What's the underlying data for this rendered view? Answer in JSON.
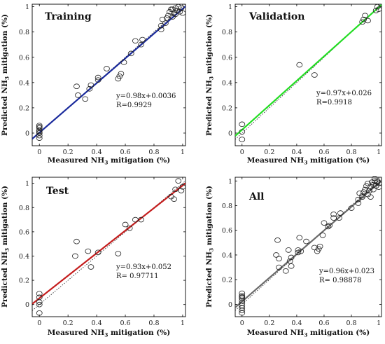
{
  "chart_data": [
    {
      "type": "scatter",
      "title": "Training",
      "xlabel": "Measured NH3 mitigation (%)",
      "ylabel": "Predicted NH3 mitigation (%)",
      "xlim": [
        -0.05,
        1.02
      ],
      "ylim": [
        -0.1,
        1.02
      ],
      "xticks": [
        "0",
        "0.2",
        "0.4",
        "0.6",
        "0.8",
        "1"
      ],
      "yticks": [
        "0",
        "0.2",
        "0.4",
        "0.6",
        "0.8",
        "1"
      ],
      "equation": "y=0.98x+0.0036",
      "r": "R=0.9929",
      "fit": {
        "slope": 0.98,
        "intercept": 0.0036
      },
      "line_color": "#1a2a9c",
      "points": [
        [
          0,
          0
        ],
        [
          0,
          0.02
        ],
        [
          0,
          -0.02
        ],
        [
          0,
          0.04
        ],
        [
          0,
          0.05
        ],
        [
          0,
          -0.04
        ],
        [
          0,
          0.06
        ],
        [
          0,
          0.01
        ],
        [
          0.26,
          0.37
        ],
        [
          0.27,
          0.3
        ],
        [
          0.32,
          0.27
        ],
        [
          0.35,
          0.35
        ],
        [
          0.36,
          0.38
        ],
        [
          0.41,
          0.42
        ],
        [
          0.41,
          0.44
        ],
        [
          0.47,
          0.51
        ],
        [
          0.55,
          0.43
        ],
        [
          0.56,
          0.45
        ],
        [
          0.57,
          0.47
        ],
        [
          0.59,
          0.56
        ],
        [
          0.64,
          0.63
        ],
        [
          0.67,
          0.73
        ],
        [
          0.71,
          0.7
        ],
        [
          0.72,
          0.74
        ],
        [
          0.85,
          0.82
        ],
        [
          0.85,
          0.85
        ],
        [
          0.86,
          0.9
        ],
        [
          0.88,
          0.87
        ],
        [
          0.89,
          0.91
        ],
        [
          0.9,
          0.93
        ],
        [
          0.91,
          0.96
        ],
        [
          0.92,
          0.98
        ],
        [
          0.93,
          0.92
        ],
        [
          0.94,
          0.95
        ],
        [
          0.95,
          0.99
        ],
        [
          0.96,
          0.97
        ],
        [
          0.97,
          1.0
        ],
        [
          0.98,
          0.96
        ],
        [
          0.99,
          0.99
        ],
        [
          1.0,
          0.95
        ],
        [
          0.93,
          0.98
        ],
        [
          0.95,
          0.94
        ]
      ]
    },
    {
      "type": "scatter",
      "title": "Validation",
      "xlabel": "Measured NH3 mitigation (%)",
      "ylabel": "Predicted NH3 mitigation (%)",
      "xlim": [
        -0.05,
        1.02
      ],
      "ylim": [
        -0.1,
        1.02
      ],
      "xticks": [
        "0",
        "0.2",
        "0.4",
        "0.6",
        "0.8",
        "1"
      ],
      "yticks": [
        "0",
        "0.2",
        "0.4",
        "0.6",
        "0.8",
        "1"
      ],
      "equation": "y=0.97x+0.026",
      "r": "R=0.9918",
      "fit": {
        "slope": 0.97,
        "intercept": 0.026
      },
      "line_color": "#22dd22",
      "points": [
        [
          0,
          0.07
        ],
        [
          0,
          0.01
        ],
        [
          0,
          -0.05
        ],
        [
          0.42,
          0.54
        ],
        [
          0.53,
          0.46
        ],
        [
          0.88,
          0.88
        ],
        [
          0.89,
          0.9
        ],
        [
          0.9,
          0.93
        ],
        [
          0.92,
          0.89
        ],
        [
          0.98,
          0.97
        ],
        [
          0.99,
          1.0
        ],
        [
          1.0,
          0.98
        ]
      ]
    },
    {
      "type": "scatter",
      "title": "Test",
      "xlabel": "Measured NH3 mitigation (%)",
      "ylabel": "Predicted NH3 mitigation (%)",
      "xlim": [
        -0.05,
        1.02
      ],
      "ylim": [
        -0.1,
        1.05
      ],
      "xticks": [
        "0",
        "0.2",
        "0.4",
        "0.6",
        "0.8",
        "1"
      ],
      "yticks": [
        "0",
        "0.2",
        "0.4",
        "0.6",
        "0.8",
        "1"
      ],
      "equation": "y=0.93x+0.052",
      "r": "R= 0.97711",
      "fit": {
        "slope": 0.93,
        "intercept": 0.052
      },
      "line_color": "#c41d1d",
      "points": [
        [
          0,
          0.09
        ],
        [
          0,
          0.06
        ],
        [
          0,
          0.02
        ],
        [
          0,
          0
        ],
        [
          0,
          -0.07
        ],
        [
          0.25,
          0.4
        ],
        [
          0.26,
          0.52
        ],
        [
          0.34,
          0.44
        ],
        [
          0.36,
          0.31
        ],
        [
          0.41,
          0.43
        ],
        [
          0.55,
          0.42
        ],
        [
          0.6,
          0.66
        ],
        [
          0.63,
          0.63
        ],
        [
          0.67,
          0.7
        ],
        [
          0.71,
          0.7
        ],
        [
          0.92,
          0.89
        ],
        [
          0.94,
          0.87
        ],
        [
          0.95,
          0.95
        ],
        [
          0.97,
          1.02
        ],
        [
          0.99,
          0.94
        ],
        [
          1.0,
          0.97
        ]
      ]
    },
    {
      "type": "scatter",
      "title": "All",
      "xlabel": "Measured NH3 mitigation (%)",
      "ylabel": "Predicted NH3 mitigation (%)",
      "xlim": [
        -0.05,
        1.02
      ],
      "ylim": [
        -0.1,
        1.03
      ],
      "xticks": [
        "0",
        "0.2",
        "0.4",
        "0.6",
        "0.8",
        "1"
      ],
      "yticks": [
        "0",
        "0.2",
        "0.4",
        "0.6",
        "0.8",
        "1"
      ],
      "equation": "y=0.96x+0.023",
      "r": "R= 0.98878",
      "fit": {
        "slope": 0.96,
        "intercept": 0.023
      },
      "line_color": "#6a6a6a",
      "points": [
        [
          0,
          0.09
        ],
        [
          0,
          0.07
        ],
        [
          0,
          0.05
        ],
        [
          0,
          0.03
        ],
        [
          0,
          0.01
        ],
        [
          0,
          -0.01
        ],
        [
          0,
          -0.03
        ],
        [
          0,
          -0.05
        ],
        [
          0,
          -0.07
        ],
        [
          0,
          0.06
        ],
        [
          0.25,
          0.4
        ],
        [
          0.26,
          0.52
        ],
        [
          0.27,
          0.37
        ],
        [
          0.27,
          0.3
        ],
        [
          0.32,
          0.27
        ],
        [
          0.34,
          0.44
        ],
        [
          0.35,
          0.35
        ],
        [
          0.36,
          0.31
        ],
        [
          0.36,
          0.38
        ],
        [
          0.41,
          0.42
        ],
        [
          0.41,
          0.44
        ],
        [
          0.42,
          0.54
        ],
        [
          0.43,
          0.43
        ],
        [
          0.47,
          0.51
        ],
        [
          0.53,
          0.46
        ],
        [
          0.55,
          0.43
        ],
        [
          0.56,
          0.45
        ],
        [
          0.57,
          0.47
        ],
        [
          0.59,
          0.56
        ],
        [
          0.6,
          0.66
        ],
        [
          0.63,
          0.63
        ],
        [
          0.64,
          0.64
        ],
        [
          0.67,
          0.73
        ],
        [
          0.67,
          0.7
        ],
        [
          0.71,
          0.7
        ],
        [
          0.72,
          0.74
        ],
        [
          0.8,
          0.78
        ],
        [
          0.85,
          0.82
        ],
        [
          0.85,
          0.85
        ],
        [
          0.86,
          0.9
        ],
        [
          0.88,
          0.87
        ],
        [
          0.88,
          0.88
        ],
        [
          0.89,
          0.91
        ],
        [
          0.9,
          0.93
        ],
        [
          0.91,
          0.96
        ],
        [
          0.92,
          0.89
        ],
        [
          0.92,
          0.98
        ],
        [
          0.93,
          0.92
        ],
        [
          0.94,
          0.95
        ],
        [
          0.94,
          0.87
        ],
        [
          0.95,
          0.99
        ],
        [
          0.96,
          0.97
        ],
        [
          0.97,
          1.0
        ],
        [
          0.97,
          1.02
        ],
        [
          0.98,
          0.96
        ],
        [
          0.99,
          0.99
        ],
        [
          1.0,
          0.95
        ],
        [
          1.0,
          0.98
        ],
        [
          0.99,
          1.0
        ],
        [
          0.96,
          0.93
        ]
      ]
    }
  ]
}
